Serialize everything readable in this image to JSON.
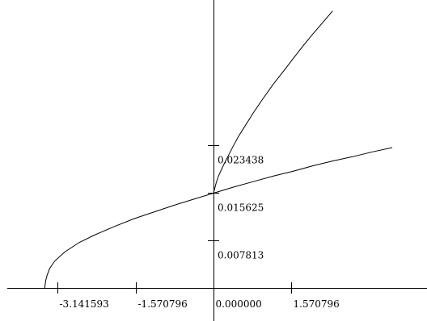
{
  "chart_data": {
    "type": "line",
    "title": "",
    "xlabel": "",
    "ylabel": "",
    "xlim": [
      -4.3,
      4.3
    ],
    "ylim": [
      0.0,
      0.0474
    ],
    "grid": false,
    "legend": "none",
    "x_ticks": [
      {
        "value": -3.141593,
        "label": "-3.141593"
      },
      {
        "value": -1.570796,
        "label": "-1.570796"
      },
      {
        "value": 0.0,
        "label": "0.000000"
      },
      {
        "value": 1.570796,
        "label": "1.570796"
      }
    ],
    "y_ticks": [
      {
        "value": 0.007813,
        "label": "0.007813"
      },
      {
        "value": 0.015625,
        "label": "0.015625"
      },
      {
        "value": 0.023438,
        "label": "0.023438"
      }
    ],
    "series": [
      {
        "x": [
          -3.4,
          -3.38,
          -3.35,
          -3.3,
          -3.2,
          -3.0,
          -2.7,
          -2.4,
          -2.0,
          -1.6,
          -1.2,
          -0.8,
          -0.4,
          0.0,
          0.4,
          0.8,
          1.2,
          1.6,
          2.0,
          2.4,
          2.8,
          3.2,
          3.6
        ],
        "y": [
          0.0,
          0.0012,
          0.0021,
          0.0032,
          0.0044,
          0.0059,
          0.0075,
          0.0087,
          0.0101,
          0.0114,
          0.0125,
          0.0136,
          0.0146,
          0.0156,
          0.0166,
          0.0175,
          0.0184,
          0.0192,
          0.0201,
          0.0209,
          0.0216,
          0.0224,
          0.0231
        ]
      },
      {
        "x": [
          0.0,
          0.05,
          0.1,
          0.2,
          0.3,
          0.4,
          0.5,
          0.6,
          0.8,
          1.0,
          1.2,
          1.4,
          1.6,
          1.8,
          2.0,
          2.2,
          2.4
        ],
        "y": [
          0.0156,
          0.0172,
          0.0184,
          0.0202,
          0.0218,
          0.0234,
          0.0249,
          0.0262,
          0.0288,
          0.0312,
          0.0335,
          0.0356,
          0.0377,
          0.0398,
          0.0418,
          0.0437,
          0.0456
        ]
      }
    ]
  }
}
